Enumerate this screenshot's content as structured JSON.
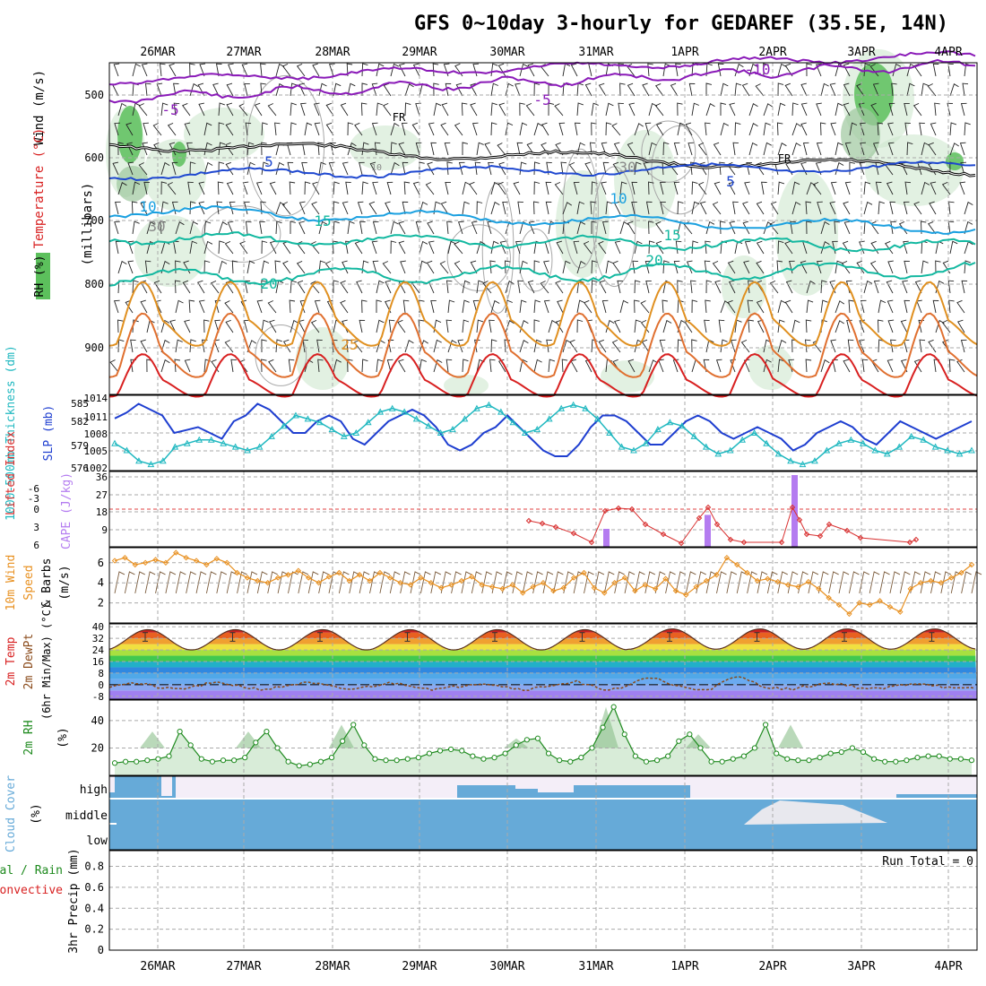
{
  "title": "GFS 0~10day 3-hourly for GEDAREF (35.5E, 14N)",
  "dates": [
    "26MAR",
    "27MAR",
    "28MAR",
    "29MAR",
    "30MAR",
    "31MAR",
    "1APR",
    "2APR",
    "3APR",
    "4APR"
  ],
  "panels": {
    "upper": {
      "ylabel_wind": "Wind (m/s)",
      "ylabel_temp": "Temperature (°C)",
      "ylabel_rh": "RH (%)",
      "ylabel_units": "(millibars)",
      "yticks": [
        "500",
        "600",
        "700",
        "800",
        "900"
      ],
      "contour_labels": [
        "-10",
        "-5",
        "-5",
        "FR",
        "FR",
        "5",
        "5",
        "10",
        "10",
        "10",
        "15",
        "15",
        "20",
        "20",
        "30",
        "30",
        "25"
      ]
    },
    "slp": {
      "ylabel_left": "1000-500mb Thickness (dm)",
      "ylabel_right": "SLP (mb)",
      "left_ticks": [
        "585",
        "582",
        "579",
        "576"
      ],
      "right_ticks": [
        "1014",
        "1011",
        "1008",
        "1005",
        "1002"
      ]
    },
    "cape": {
      "ylabel_left": "Lifted Index",
      "ylabel_right": "CAPE (J/kg)",
      "left_ticks": [
        "-6",
        "-3",
        "0",
        "3",
        "6"
      ],
      "right_ticks": [
        "36",
        "27",
        "18",
        "9"
      ]
    },
    "wind10": {
      "ylabel_a": "10m Wind",
      "ylabel_b": "Speed",
      "ylabel_c": "& Barbs",
      "ylabel_units": "(m/s)",
      "yticks": [
        "6",
        "4",
        "2"
      ]
    },
    "temp2m": {
      "ylabel_a": "2m Temp",
      "ylabel_b": "2m DewPt",
      "ylabel_c": "(6hr Min/Max) (°C)",
      "yticks": [
        "40",
        "32",
        "24",
        "16",
        "8",
        "0",
        "-8"
      ]
    },
    "rh2m": {
      "ylabel": "2m RH",
      "ylabel_units": "(%)",
      "yticks": [
        "40",
        "20"
      ]
    },
    "cloud": {
      "ylabel": "Cloud Cover",
      "ylabel_units": "(%)",
      "levels": [
        "high",
        "middle",
        "low"
      ]
    },
    "precip": {
      "ylabel_a": "Total / Rain",
      "ylabel_b": "Convective",
      "ylabel_c": "3hr Precip (mm)",
      "yticks": [
        "0.8",
        "0.6",
        "0.4",
        "0.2",
        "0"
      ],
      "run_total": "Run Total = 0"
    }
  },
  "colors": {
    "purple": "#8a1ab8",
    "freezing": "#000000",
    "blue_dark": "#1f48d0",
    "blue_light": "#1aa0e0",
    "teal": "#12b8a0",
    "orange": "#e09020",
    "red": "#d82020",
    "slp_line": "#1f3fd0",
    "thick_line": "#20b8c0",
    "li_line": "#d83030",
    "cape_bar": "#b47cf0",
    "wind_speed": "#e89020",
    "dewpt": "#8a4a1a",
    "rh_line": "#1e8a1e",
    "rh_fill": "#d8ecd8",
    "cloud": "#66aad8",
    "cloud_bg": "#f4eef8",
    "grid": "#aaaaaa"
  },
  "chart_data": [
    {
      "type": "line",
      "panel": "SLP and 1000-500mb thickness",
      "x": [
        "26MAR",
        "27MAR",
        "28MAR",
        "29MAR",
        "30MAR",
        "31MAR",
        "1APR",
        "2APR",
        "3APR",
        "4APR"
      ],
      "series": [
        {
          "name": "SLP (mb)",
          "values": [
            1010.5,
            1010.8,
            1008.5,
            1009.5,
            1005.5,
            1005.0,
            1008.5,
            1005.5,
            1006.0,
            1008.0
          ]
        },
        {
          "name": "1000-500mb Thickness (dm)",
          "values": [
            578.8,
            579.0,
            582.5,
            583.5,
            583.8,
            583.8,
            582.0,
            579.5,
            578.5,
            579.0
          ]
        }
      ],
      "ylim_left": [
        576,
        586
      ],
      "ylim_right": [
        1002,
        1014
      ]
    },
    {
      "type": "bar",
      "panel": "CAPE",
      "categories": [
        "31MAR",
        "1APR",
        "2APR"
      ],
      "values": [
        9,
        16,
        36
      ],
      "ylim": [
        0,
        36
      ]
    },
    {
      "type": "line",
      "panel": "10m wind speed",
      "x": [
        "26MAR",
        "27MAR",
        "28MAR",
        "29MAR",
        "30MAR",
        "31MAR",
        "1APR",
        "2APR",
        "3APR",
        "4APR"
      ],
      "values": [
        6.2,
        5.5,
        4.2,
        4.0,
        3.5,
        3.8,
        3.5,
        4.2,
        2.0,
        4.2
      ],
      "ylim": [
        0,
        7.5
      ]
    },
    {
      "type": "area",
      "panel": "2m temperature",
      "x": [
        "26MAR",
        "27MAR",
        "28MAR",
        "29MAR",
        "30MAR",
        "31MAR",
        "1APR",
        "2APR",
        "3APR",
        "4APR"
      ],
      "series": [
        {
          "name": "2m Temp max",
          "values": [
            37,
            37,
            38,
            38,
            38,
            39,
            38,
            38,
            37,
            38
          ]
        },
        {
          "name": "2m Temp min",
          "values": [
            25,
            24,
            25,
            25,
            26,
            26,
            26,
            25,
            25,
            25
          ]
        }
      ],
      "ylim": [
        -10,
        42
      ]
    },
    {
      "type": "line",
      "panel": "2m RH",
      "x": [
        "26MAR",
        "27MAR",
        "28MAR",
        "29MAR",
        "30MAR",
        "31MAR",
        "1APR",
        "2APR",
        "3APR",
        "4APR"
      ],
      "values": [
        32,
        32,
        37,
        18,
        26,
        50,
        30,
        37,
        22,
        12
      ],
      "ylim": [
        0,
        50
      ]
    },
    {
      "type": "line",
      "panel": "3hr precip",
      "x": [
        "26MAR",
        "4APR"
      ],
      "values": [
        0,
        0
      ],
      "ylim": [
        0,
        0.95
      ]
    }
  ]
}
